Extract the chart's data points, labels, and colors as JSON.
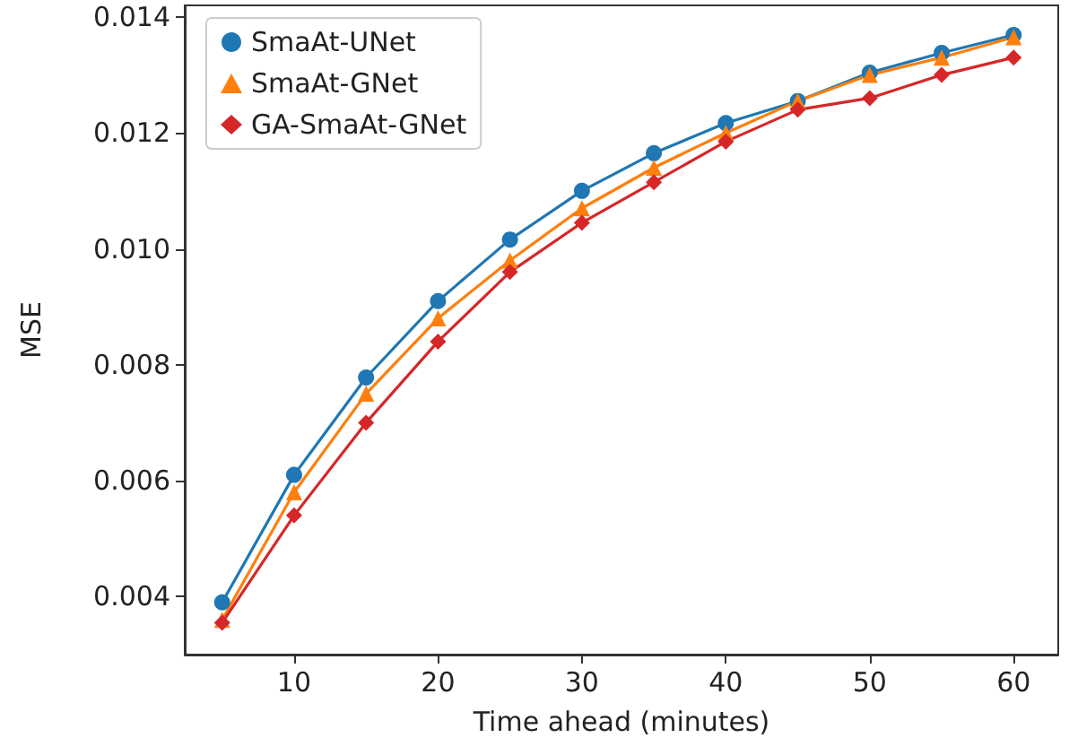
{
  "chart_data": {
    "type": "line",
    "xlabel": "Time ahead (minutes)",
    "ylabel": "MSE",
    "x": [
      5,
      10,
      15,
      20,
      25,
      30,
      35,
      40,
      45,
      50,
      55,
      60
    ],
    "series": [
      {
        "name": "SmaAt-UNet",
        "color": "#1f77b4",
        "marker": "circle",
        "values": [
          0.0039,
          0.0061,
          0.00778,
          0.0091,
          0.01016,
          0.011,
          0.01165,
          0.01217,
          0.01255,
          0.01304,
          0.01338,
          0.01369
        ]
      },
      {
        "name": "SmaAt-GNet",
        "color": "#ff7f0e",
        "marker": "triangle",
        "values": [
          0.0036,
          0.0058,
          0.0075,
          0.0088,
          0.0098,
          0.0107,
          0.0114,
          0.012,
          0.01255,
          0.013,
          0.0133,
          0.01365
        ]
      },
      {
        "name": "GA-SmaAt-GNet",
        "color": "#d62728",
        "marker": "diamond",
        "values": [
          0.00355,
          0.0054,
          0.007,
          0.0084,
          0.0096,
          0.01045,
          0.01115,
          0.01185,
          0.0124,
          0.0126,
          0.013,
          0.0133
        ]
      }
    ],
    "xlim": [
      2.4,
      63.1
    ],
    "xticks": [
      10,
      20,
      30,
      40,
      50,
      60
    ],
    "ylim": [
      0.003,
      0.0142
    ],
    "yticks": [
      0.004,
      0.006,
      0.008,
      {
        "value": 0.01,
        "label": "0.010"
      },
      0.012,
      0.014
    ],
    "legend": "top left",
    "grid": false,
    "line_style": "solid"
  }
}
